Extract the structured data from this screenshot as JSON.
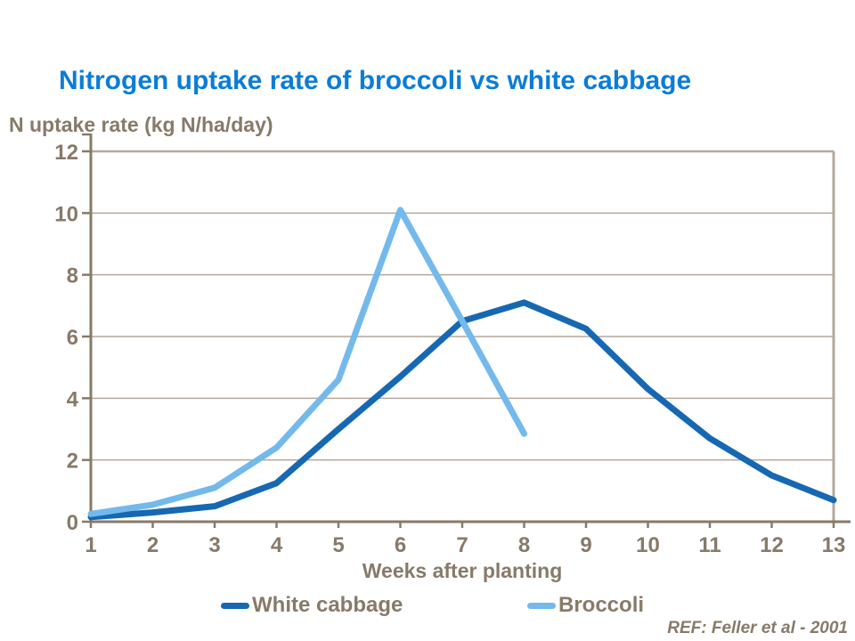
{
  "title": "Nitrogen uptake rate of broccoli vs white cabbage",
  "y_axis_title": "N uptake rate (kg N/ha/day)",
  "x_axis_title": "Weeks after planting",
  "reference": "REF: Feller et al - 2001",
  "legend": {
    "items": [
      {
        "label": "White cabbage",
        "color": "#1668B2"
      },
      {
        "label": "Broccoli",
        "color": "#74B9EC"
      }
    ]
  },
  "colors": {
    "title": "#0C7CD6",
    "text": "#877A69",
    "axis": "#877A69",
    "grid": "#B3A89B"
  },
  "chart_data": {
    "type": "line",
    "x": [
      1,
      2,
      3,
      4,
      5,
      6,
      7,
      8,
      9,
      10,
      11,
      12,
      13
    ],
    "series": [
      {
        "name": "White cabbage",
        "color": "#1668B2",
        "values": [
          0.15,
          0.3,
          0.5,
          1.25,
          3.0,
          4.7,
          6.5,
          7.1,
          6.25,
          4.3,
          2.7,
          1.5,
          0.7
        ]
      },
      {
        "name": "Broccoli",
        "color": "#74B9EC",
        "values": [
          0.25,
          0.55,
          1.1,
          2.4,
          4.6,
          10.1,
          6.5,
          2.85,
          null,
          null,
          null,
          null,
          null
        ]
      }
    ],
    "title": "Nitrogen uptake rate of broccoli vs white cabbage",
    "xlabel": "Weeks after planting",
    "ylabel": "N uptake rate (kg N/ha/day)",
    "xlim": [
      1,
      13
    ],
    "ylim": [
      0,
      12
    ],
    "x_ticks": [
      1,
      2,
      3,
      4,
      5,
      6,
      7,
      8,
      9,
      10,
      11,
      12,
      13
    ],
    "y_ticks": [
      0,
      2,
      4,
      6,
      8,
      10,
      12
    ],
    "grid": true,
    "legend_position": "bottom",
    "annotation": "REF: Feller et al - 2001"
  }
}
